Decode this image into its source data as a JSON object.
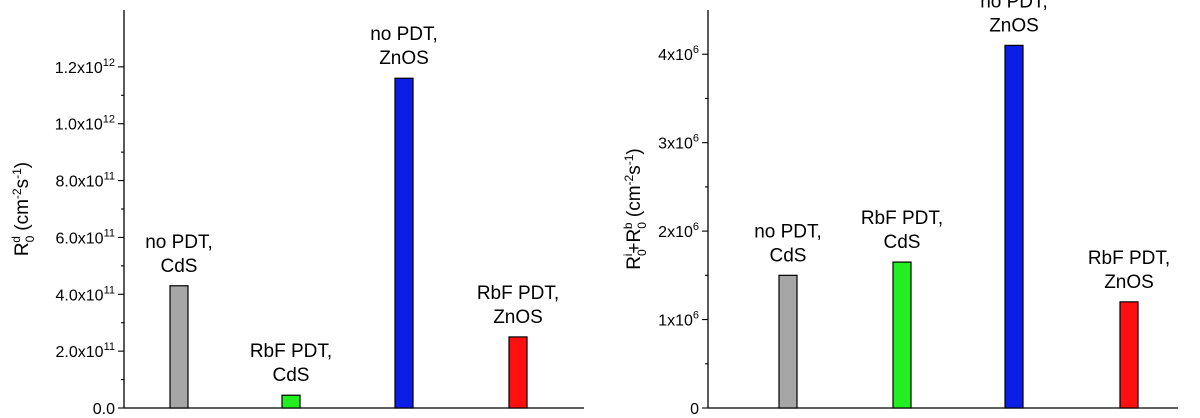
{
  "chart_data": [
    {
      "type": "bar",
      "title": "",
      "ylabel": "R0d (cm-2s-1)",
      "ylabel_parts": {
        "main": "R",
        "sub": "0",
        "sup": "d",
        "units_open": " (cm",
        "units_exp1": "-2",
        "units_mid": "s",
        "units_exp2": "-1",
        "units_close": ")"
      },
      "ylim": [
        0,
        1400000000000.0
      ],
      "yticks": [
        0,
        200000000000.0,
        400000000000.0,
        600000000000.0,
        800000000000.0,
        1000000000000.0,
        1200000000000.0
      ],
      "ytick_labels": [
        {
          "base": "0.0",
          "exp": ""
        },
        {
          "base": "2.0x10",
          "exp": "11"
        },
        {
          "base": "4.0x10",
          "exp": "11"
        },
        {
          "base": "6.0x10",
          "exp": "11"
        },
        {
          "base": "8.0x10",
          "exp": "11"
        },
        {
          "base": "1.0x10",
          "exp": "12"
        },
        {
          "base": "1.2x10",
          "exp": "12"
        }
      ],
      "categories": [
        "no PDT, CdS",
        "RbF PDT, CdS",
        "no PDT, ZnOS",
        "RbF PDT, ZnOS"
      ],
      "category_labels": [
        [
          "no PDT,",
          "CdS"
        ],
        [
          "RbF PDT,",
          "CdS"
        ],
        [
          "no PDT,",
          "ZnOS"
        ],
        [
          "RbF PDT,",
          "ZnOS"
        ]
      ],
      "values": [
        430000000000.0,
        45000000000.0,
        1160000000000.0,
        250000000000.0
      ],
      "colors": [
        "#a6a6a6",
        "#22ee22",
        "#0a1ee6",
        "#ff1010"
      ],
      "grid": false
    },
    {
      "type": "bar",
      "title": "",
      "ylabel": "R0i+R0b (cm-2s-1)",
      "ylabel_parts": {
        "main1": "R",
        "sub1": "0",
        "sup1": "i",
        "plus": "+R",
        "sub2": "0",
        "sup2": "b",
        "units_open": " (cm",
        "units_exp1": "-2",
        "units_mid": "s",
        "units_exp2": "-1",
        "units_close": ")"
      },
      "ylim": [
        0,
        4500000.0
      ],
      "yticks": [
        0,
        1000000.0,
        2000000.0,
        3000000.0,
        4000000.0
      ],
      "ytick_labels": [
        {
          "base": "0",
          "exp": ""
        },
        {
          "base": "1x10",
          "exp": "6"
        },
        {
          "base": "2x10",
          "exp": "6"
        },
        {
          "base": "3x10",
          "exp": "6"
        },
        {
          "base": "4x10",
          "exp": "6"
        }
      ],
      "categories": [
        "no PDT, CdS",
        "RbF PDT, CdS",
        "no PDT, ZnOS",
        "RbF PDT, ZnOS"
      ],
      "category_labels": [
        [
          "no PDT,",
          "CdS"
        ],
        [
          "RbF PDT,",
          "CdS"
        ],
        [
          "no PDT,",
          "ZnOS"
        ],
        [
          "RbF PDT,",
          "ZnOS"
        ]
      ],
      "values": [
        1500000.0,
        1650000.0,
        4100000.0,
        1200000.0
      ],
      "colors": [
        "#a6a6a6",
        "#22ee22",
        "#0a1ee6",
        "#ff1010"
      ],
      "grid": false
    }
  ]
}
